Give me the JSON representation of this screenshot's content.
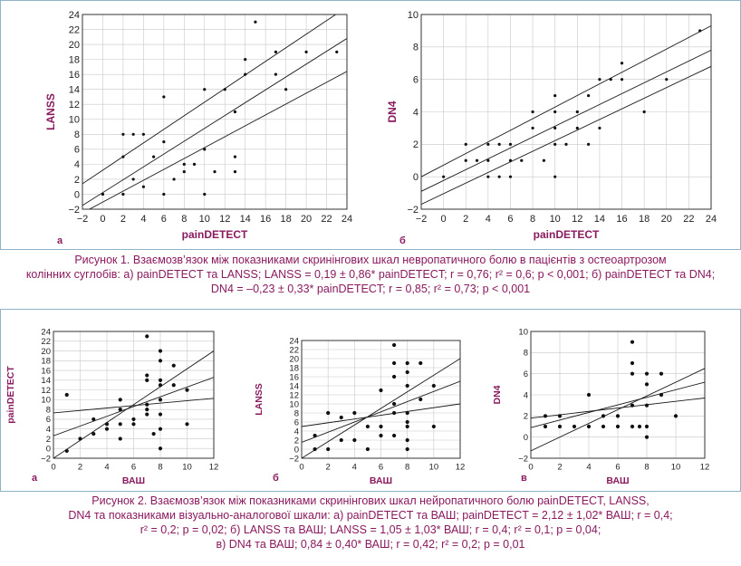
{
  "figure1": {
    "caption_lines": [
      "Рисунок 1.  Взаємозв’язок між показниками скринінгових шкал невропатичного болю в пацієнтів з остеоартрозом",
      "колінних суглобів: а) painDETECT та LANSS; LANSS = 0,19 ± 0,86* painDETECT; r = 0,76; r² = 0,6; p < 0,001; б) painDETECT та DN4;",
      "DN4 = –0,23 ± 0,33*  painDETECT; r = 0,85; r² = 0,73; p < 0,001"
    ],
    "panel_letters": [
      "а",
      "б"
    ]
  },
  "figure2": {
    "caption_lines": [
      "Рисунок 2.  Взаємозв’язок між показниками скринінгових шкал нейропатичного болю painDETECT, LANSS,",
      "DN4 та показниками візуально-аналогової шкали: а) painDETECT та ВАШ; painDETECT = 2,12 ± 1,02* ВАШ; r = 0,4;",
      "r² = 0,2; p = 0,02; б) LANSS та ВАШ; LANSS = 1,05 ± 1,03* ВАШ; r = 0,4; r² = 0,1; p = 0,04;",
      "в) DN4 та ВАШ; 0,84 ± 0,40* ВАШ; r = 0,42; r² = 0,2; p = 0,01"
    ],
    "panel_letters": [
      "а",
      "б",
      "в"
    ]
  },
  "colors": {
    "label": "#8a1a5e",
    "axis": "#333333",
    "frame": "#8fb3c9"
  },
  "chart_data": [
    {
      "type": "scatter",
      "xlabel": "painDETECT",
      "ylabel": "LANSS",
      "xlim": [
        -2,
        24
      ],
      "ylim": [
        -2,
        24
      ],
      "xticks": [
        -2,
        0,
        2,
        4,
        6,
        8,
        10,
        12,
        14,
        16,
        18,
        20,
        22,
        24
      ],
      "yticks": [
        -2,
        0,
        2,
        4,
        6,
        8,
        10,
        12,
        14,
        16,
        18,
        20,
        22,
        24
      ],
      "points": [
        [
          0,
          0
        ],
        [
          2,
          8
        ],
        [
          2,
          5
        ],
        [
          2,
          0
        ],
        [
          3,
          8
        ],
        [
          3,
          2
        ],
        [
          4,
          8
        ],
        [
          4,
          1
        ],
        [
          5,
          5
        ],
        [
          6,
          7
        ],
        [
          6,
          13
        ],
        [
          6,
          0
        ],
        [
          7,
          2
        ],
        [
          8,
          4
        ],
        [
          8,
          3
        ],
        [
          9,
          4
        ],
        [
          10,
          14
        ],
        [
          10,
          6
        ],
        [
          10,
          0
        ],
        [
          11,
          3
        ],
        [
          12,
          14
        ],
        [
          13,
          11
        ],
        [
          13,
          5
        ],
        [
          13,
          3
        ],
        [
          14,
          18
        ],
        [
          14,
          16
        ],
        [
          15,
          23
        ],
        [
          17,
          19
        ],
        [
          17,
          16
        ],
        [
          18,
          14
        ],
        [
          20,
          19
        ],
        [
          23,
          19
        ]
      ],
      "fit_lines": [
        [
          [
            -2,
            -1.5
          ],
          [
            24,
            20.8
          ]
        ],
        [
          [
            -2,
            -2.5
          ],
          [
            24,
            16.4
          ]
        ],
        [
          [
            -2,
            1.4
          ],
          [
            24,
            25
          ]
        ]
      ]
    },
    {
      "type": "scatter",
      "xlabel": "painDETECT",
      "ylabel": "DN4",
      "xlim": [
        -2,
        24
      ],
      "ylim": [
        -2,
        10
      ],
      "xticks": [
        -2,
        0,
        2,
        4,
        6,
        8,
        10,
        12,
        14,
        16,
        18,
        20,
        22,
        24
      ],
      "yticks": [
        -2,
        0,
        2,
        4,
        6,
        8,
        10
      ],
      "points": [
        [
          0,
          0
        ],
        [
          2,
          2
        ],
        [
          2,
          1
        ],
        [
          3,
          1
        ],
        [
          4,
          2
        ],
        [
          4,
          1
        ],
        [
          4,
          0
        ],
        [
          5,
          2
        ],
        [
          5,
          0
        ],
        [
          6,
          2
        ],
        [
          6,
          1
        ],
        [
          6,
          0
        ],
        [
          7,
          1
        ],
        [
          8,
          4
        ],
        [
          8,
          3
        ],
        [
          9,
          1
        ],
        [
          10,
          5
        ],
        [
          10,
          4
        ],
        [
          10,
          3
        ],
        [
          10,
          2
        ],
        [
          10,
          0
        ],
        [
          11,
          2
        ],
        [
          12,
          4
        ],
        [
          12,
          3
        ],
        [
          13,
          5
        ],
        [
          13,
          2
        ],
        [
          14,
          6
        ],
        [
          14,
          3
        ],
        [
          15,
          6
        ],
        [
          16,
          7
        ],
        [
          16,
          6
        ],
        [
          18,
          4
        ],
        [
          20,
          6
        ],
        [
          23,
          9
        ]
      ],
      "fit_lines": [
        [
          [
            -2,
            -0.9
          ],
          [
            24,
            7.8
          ]
        ],
        [
          [
            -2,
            -1.7
          ],
          [
            24,
            6.8
          ]
        ],
        [
          [
            -2,
            0
          ],
          [
            24,
            9.3
          ]
        ]
      ]
    },
    {
      "type": "scatter",
      "xlabel": "ВАШ",
      "ylabel": "painDETECT",
      "xlim": [
        0,
        12
      ],
      "ylim": [
        -2,
        24
      ],
      "xticks": [
        0,
        2,
        4,
        6,
        8,
        10,
        12
      ],
      "yticks": [
        -2,
        0,
        2,
        4,
        6,
        8,
        10,
        12,
        14,
        16,
        18,
        20,
        22,
        24
      ],
      "points": [
        [
          1,
          11
        ],
        [
          1,
          -0.5
        ],
        [
          2,
          2
        ],
        [
          3,
          6
        ],
        [
          3,
          3
        ],
        [
          4,
          5
        ],
        [
          4,
          4
        ],
        [
          5,
          10
        ],
        [
          5,
          8
        ],
        [
          5,
          5
        ],
        [
          5,
          2
        ],
        [
          6,
          6
        ],
        [
          6,
          5
        ],
        [
          7,
          23
        ],
        [
          7,
          15
        ],
        [
          7,
          14
        ],
        [
          7,
          9
        ],
        [
          7,
          8
        ],
        [
          7,
          7
        ],
        [
          7.5,
          3
        ],
        [
          8,
          20
        ],
        [
          8,
          18
        ],
        [
          8,
          14
        ],
        [
          8,
          13
        ],
        [
          8,
          10
        ],
        [
          8,
          7
        ],
        [
          8,
          4
        ],
        [
          8,
          0
        ],
        [
          9,
          17
        ],
        [
          9,
          13
        ],
        [
          10,
          12
        ],
        [
          10,
          5
        ]
      ],
      "fit_lines": [
        [
          [
            0,
            -2
          ],
          [
            12,
            20
          ]
        ],
        [
          [
            0,
            2.6
          ],
          [
            12,
            14.6
          ]
        ],
        [
          [
            0,
            7.3
          ],
          [
            12,
            10.3
          ]
        ]
      ]
    },
    {
      "type": "scatter",
      "xlabel": "ВАШ",
      "ylabel": "LANSS",
      "xlim": [
        0,
        12
      ],
      "ylim": [
        -2,
        24
      ],
      "xticks": [
        0,
        2,
        4,
        6,
        8,
        10,
        12
      ],
      "yticks": [
        -2,
        0,
        2,
        4,
        6,
        8,
        10,
        12,
        14,
        16,
        18,
        20,
        22,
        24
      ],
      "points": [
        [
          1,
          0
        ],
        [
          1,
          3
        ],
        [
          2,
          8
        ],
        [
          2,
          0
        ],
        [
          3,
          7
        ],
        [
          3,
          2
        ],
        [
          4,
          8
        ],
        [
          4,
          2
        ],
        [
          5,
          5
        ],
        [
          5,
          0
        ],
        [
          6,
          13
        ],
        [
          6,
          5
        ],
        [
          6,
          3
        ],
        [
          7,
          23
        ],
        [
          7,
          19
        ],
        [
          7,
          16
        ],
        [
          7,
          10
        ],
        [
          7,
          8
        ],
        [
          7,
          3
        ],
        [
          8,
          19
        ],
        [
          8,
          17
        ],
        [
          8,
          14
        ],
        [
          8,
          8
        ],
        [
          8,
          6
        ],
        [
          8,
          5
        ],
        [
          8,
          2
        ],
        [
          8,
          0
        ],
        [
          9,
          19
        ],
        [
          9,
          11
        ],
        [
          10,
          14
        ],
        [
          10,
          5
        ]
      ],
      "fit_lines": [
        [
          [
            0,
            -2
          ],
          [
            12,
            20
          ]
        ],
        [
          [
            0,
            1.5
          ],
          [
            12,
            15
          ]
        ],
        [
          [
            0,
            5
          ],
          [
            12,
            10
          ]
        ]
      ]
    },
    {
      "type": "scatter",
      "xlabel": "ВАШ",
      "ylabel": "DN4",
      "xlim": [
        0,
        12
      ],
      "ylim": [
        -2,
        10
      ],
      "xticks": [
        0,
        2,
        4,
        6,
        8,
        10,
        12
      ],
      "yticks": [
        -2,
        0,
        2,
        4,
        6,
        8,
        10
      ],
      "points": [
        [
          1,
          2
        ],
        [
          1,
          1
        ],
        [
          2,
          2
        ],
        [
          2,
          1
        ],
        [
          3,
          1
        ],
        [
          4,
          4
        ],
        [
          4,
          1
        ],
        [
          5,
          2
        ],
        [
          5,
          1
        ],
        [
          6,
          2
        ],
        [
          6,
          1
        ],
        [
          7,
          9
        ],
        [
          7,
          7
        ],
        [
          7,
          6
        ],
        [
          7,
          3
        ],
        [
          7,
          1
        ],
        [
          7.5,
          1
        ],
        [
          8,
          6
        ],
        [
          8,
          5
        ],
        [
          8,
          3
        ],
        [
          8,
          1
        ],
        [
          8,
          0
        ],
        [
          9,
          6
        ],
        [
          9,
          4
        ],
        [
          10,
          2
        ]
      ],
      "fit_lines": [
        [
          [
            0,
            -1.3
          ],
          [
            12,
            6.5
          ]
        ],
        [
          [
            0,
            0.9
          ],
          [
            12,
            5.2
          ]
        ],
        [
          [
            0,
            1.8
          ],
          [
            12,
            3.7
          ]
        ]
      ]
    }
  ]
}
